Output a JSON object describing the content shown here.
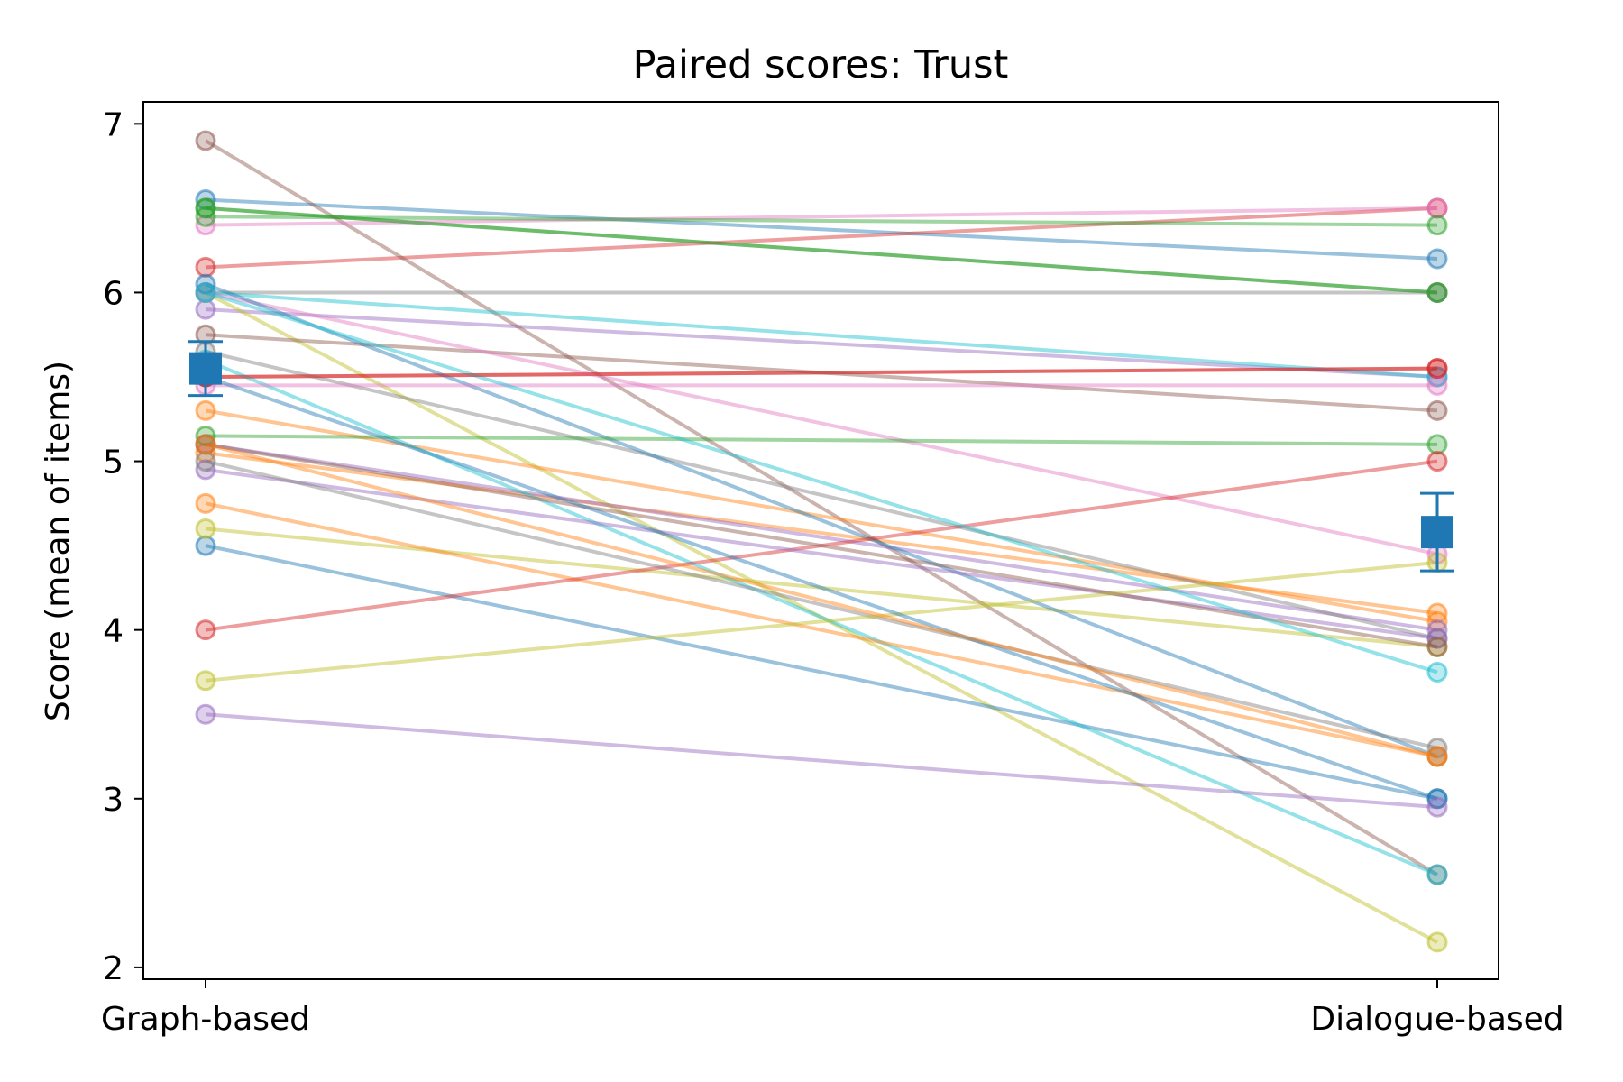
{
  "chart_data": {
    "type": "line",
    "title": "Paired scores: Trust",
    "xlabel": "",
    "ylabel": "Score (mean of items)",
    "categories": [
      "Graph-based",
      "Dialogue-based"
    ],
    "ylim": [
      1.93,
      7.13
    ],
    "yticks": [
      2,
      3,
      4,
      5,
      6,
      7
    ],
    "grid": false,
    "series": [
      {
        "values": [
          6.55,
          6.2
        ],
        "color": "#1f77b4"
      },
      {
        "values": [
          5.05,
          4.1
        ],
        "color": "#ff7f0e"
      },
      {
        "values": [
          6.5,
          6.0
        ],
        "color": "#2ca02c"
      },
      {
        "values": [
          6.15,
          6.5
        ],
        "color": "#d62728"
      },
      {
        "values": [
          5.9,
          5.5
        ],
        "color": "#9467bd"
      },
      {
        "values": [
          6.9,
          2.55
        ],
        "color": "#8c564b"
      },
      {
        "values": [
          6.4,
          6.5
        ],
        "color": "#e377c2"
      },
      {
        "values": [
          6.0,
          6.0
        ],
        "color": "#7f7f7f"
      },
      {
        "values": [
          6.0,
          2.15
        ],
        "color": "#bcbd22"
      },
      {
        "values": [
          6.0,
          5.5
        ],
        "color": "#17becf"
      },
      {
        "values": [
          4.5,
          3.0
        ],
        "color": "#1f77b4"
      },
      {
        "values": [
          5.3,
          4.05
        ],
        "color": "#ff7f0e"
      },
      {
        "values": [
          6.45,
          6.4
        ],
        "color": "#2ca02c"
      },
      {
        "values": [
          5.5,
          5.55
        ],
        "color": "#d62728"
      },
      {
        "values": [
          5.1,
          4.0
        ],
        "color": "#9467bd"
      },
      {
        "values": [
          5.75,
          5.3
        ],
        "color": "#8c564b"
      },
      {
        "values": [
          6.0,
          4.45
        ],
        "color": "#e377c2"
      },
      {
        "values": [
          5.65,
          3.95
        ],
        "color": "#7f7f7f"
      },
      {
        "values": [
          4.6,
          3.9
        ],
        "color": "#bcbd22"
      },
      {
        "values": [
          5.6,
          2.55
        ],
        "color": "#17becf"
      },
      {
        "values": [
          6.05,
          3.25
        ],
        "color": "#1f77b4"
      },
      {
        "values": [
          4.75,
          3.25
        ],
        "color": "#ff7f0e"
      },
      {
        "values": [
          5.15,
          5.1
        ],
        "color": "#2ca02c"
      },
      {
        "values": [
          4.0,
          5.0
        ],
        "color": "#d62728"
      },
      {
        "values": [
          4.95,
          3.95
        ],
        "color": "#9467bd"
      },
      {
        "values": [
          5.1,
          3.9
        ],
        "color": "#8c564b"
      },
      {
        "values": [
          5.45,
          5.45
        ],
        "color": "#e377c2"
      },
      {
        "values": [
          5.0,
          3.3
        ],
        "color": "#7f7f7f"
      },
      {
        "values": [
          3.7,
          4.4
        ],
        "color": "#bcbd22"
      },
      {
        "values": [
          6.0,
          3.75
        ],
        "color": "#17becf"
      },
      {
        "values": [
          5.5,
          3.0
        ],
        "color": "#1f77b4"
      },
      {
        "values": [
          5.1,
          3.25
        ],
        "color": "#ff7f0e"
      },
      {
        "values": [
          6.5,
          6.0
        ],
        "color": "#2ca02c"
      },
      {
        "values": [
          5.5,
          5.55
        ],
        "color": "#d62728"
      },
      {
        "values": [
          3.5,
          2.95
        ],
        "color": "#9467bd"
      }
    ],
    "mean_markers": {
      "color": "#1f77b4",
      "means": [
        5.55,
        4.58
      ],
      "error_low": [
        5.39,
        4.35
      ],
      "error_high": [
        5.71,
        4.81
      ]
    }
  }
}
